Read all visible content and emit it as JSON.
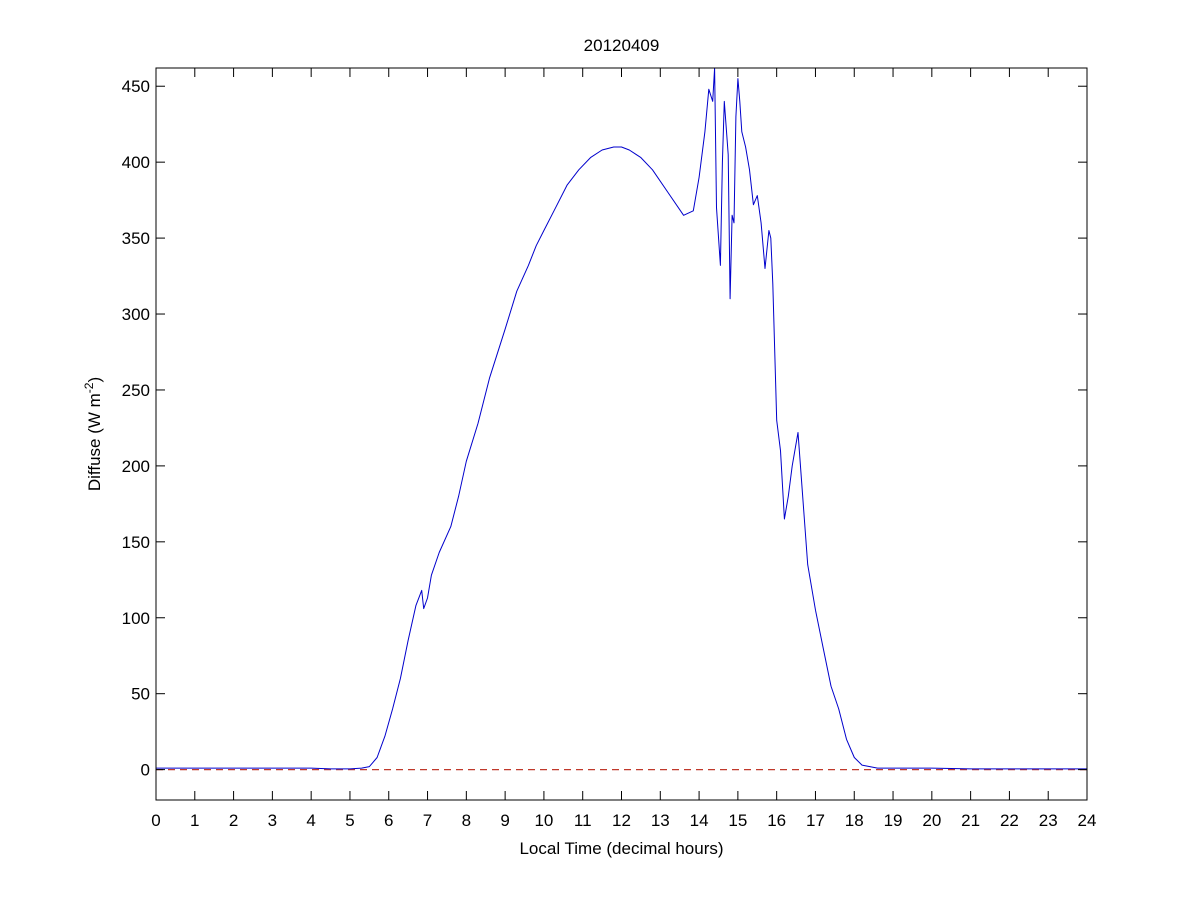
{
  "chart_data": {
    "type": "line",
    "title": "20120409",
    "xlabel": "Local Time (decimal hours)",
    "ylabel_main": "Diffuse (W m",
    "ylabel_sup": "-2",
    "ylabel_close": ")",
    "xlim": [
      0,
      24
    ],
    "ylim": [
      -20,
      462
    ],
    "xticks": [
      "0",
      "1",
      "2",
      "3",
      "4",
      "5",
      "6",
      "7",
      "8",
      "9",
      "10",
      "11",
      "12",
      "13",
      "14",
      "15",
      "16",
      "17",
      "18",
      "19",
      "20",
      "21",
      "22",
      "23",
      "24"
    ],
    "yticks": [
      "0",
      "50",
      "100",
      "150",
      "200",
      "250",
      "300",
      "350",
      "400",
      "450"
    ],
    "grid": false,
    "colors": {
      "series": "#0000cc",
      "reference": "#c0392b",
      "axes": "#000000"
    },
    "series": [
      {
        "style": "solid",
        "x": [
          0,
          1,
          2,
          3,
          4,
          4.5,
          5,
          5.3,
          5.5,
          5.7,
          5.9,
          6.1,
          6.3,
          6.5,
          6.7,
          6.85,
          6.9,
          7.0,
          7.1,
          7.3,
          7.6,
          7.8,
          8.0,
          8.3,
          8.6,
          9.0,
          9.3,
          9.6,
          9.8,
          10.0,
          10.3,
          10.6,
          10.9,
          11.2,
          11.5,
          11.8,
          12.0,
          12.2,
          12.5,
          12.8,
          13.2,
          13.6,
          13.85,
          14.0,
          14.15,
          14.25,
          14.35,
          14.4,
          14.45,
          14.55,
          14.6,
          14.65,
          14.75,
          14.8,
          14.85,
          14.9,
          14.95,
          15.0,
          15.05,
          15.1,
          15.2,
          15.3,
          15.4,
          15.5,
          15.6,
          15.7,
          15.8,
          15.85,
          15.9,
          16.0,
          16.1,
          16.2,
          16.3,
          16.4,
          16.55,
          16.6,
          16.7,
          16.8,
          17.0,
          17.2,
          17.4,
          17.6,
          17.8,
          18.0,
          18.2,
          18.4,
          18.6,
          18.8,
          19.0,
          19.5,
          20,
          21,
          22,
          23,
          24
        ],
        "y": [
          1,
          1,
          1,
          1,
          1,
          0.5,
          0.5,
          1,
          2,
          8,
          22,
          40,
          60,
          85,
          108,
          118,
          106,
          113,
          128,
          143,
          160,
          180,
          203,
          228,
          258,
          290,
          315,
          332,
          345,
          355,
          370,
          385,
          395,
          403,
          408,
          410,
          410,
          408,
          403,
          395,
          380,
          365,
          368,
          390,
          420,
          448,
          440,
          462,
          370,
          332,
          400,
          440,
          405,
          310,
          365,
          360,
          430,
          455,
          440,
          420,
          410,
          395,
          372,
          378,
          360,
          330,
          355,
          350,
          320,
          230,
          210,
          165,
          180,
          200,
          222,
          205,
          170,
          135,
          105,
          80,
          55,
          40,
          20,
          8,
          3,
          2,
          1,
          1,
          1,
          1,
          1,
          0.5,
          0.5,
          0.5,
          0.5
        ]
      },
      {
        "style": "dashed",
        "x": [
          0,
          24
        ],
        "y": [
          0,
          0
        ]
      }
    ]
  }
}
